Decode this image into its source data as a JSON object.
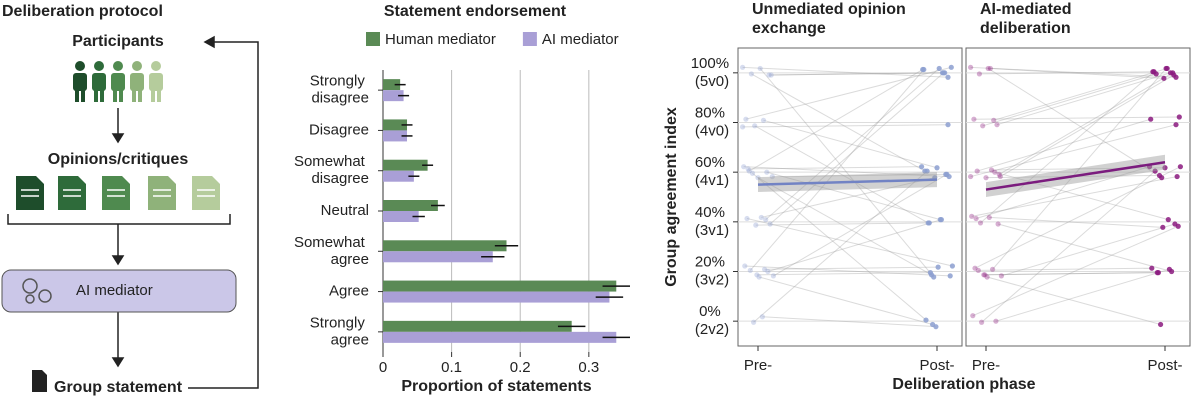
{
  "protocol": {
    "title": "Deliberation protocol",
    "participants": "Participants",
    "opinions": "Opinions/critiques",
    "mediator": "AI mediator",
    "statement": "Group statement"
  },
  "chart_data": [
    {
      "type": "bar",
      "orientation": "horizontal",
      "title": "Statement endorsement",
      "categories": [
        "Strongly disagree",
        "Disagree",
        "Somewhat disagree",
        "Neutral",
        "Somewhat agree",
        "Agree",
        "Strongly agree"
      ],
      "series": [
        {
          "name": "Human mediator",
          "color": "#5a8a55",
          "values": [
            0.025,
            0.035,
            0.065,
            0.08,
            0.18,
            0.34,
            0.275
          ],
          "errors": [
            0.008,
            0.008,
            0.008,
            0.01,
            0.017,
            0.02,
            0.02
          ]
        },
        {
          "name": "AI mediator",
          "color": "#a99fd6",
          "values": [
            0.03,
            0.035,
            0.045,
            0.052,
            0.16,
            0.33,
            0.34
          ],
          "errors": [
            0.008,
            0.008,
            0.008,
            0.009,
            0.017,
            0.02,
            0.02
          ]
        }
      ],
      "xlabel": "Proportion of statements",
      "xlim": [
        0,
        0.36
      ],
      "xticks": [
        0,
        0.1,
        0.2,
        0.3
      ],
      "grid": true,
      "legend": "top"
    },
    {
      "type": "scatter",
      "title": "Unmediated opinion exchange",
      "categories": [
        "Pre-",
        "Post-"
      ],
      "ylabel": "Group agreement index",
      "ylim": [
        -10,
        110
      ],
      "yticks": [
        {
          "value": 0,
          "label": "0% (2v2)"
        },
        {
          "value": 20,
          "label": "20% (3v2)"
        },
        {
          "value": 40,
          "label": "40% (3v1)"
        },
        {
          "value": 60,
          "label": "60% (4v1)"
        },
        {
          "value": 80,
          "label": "80% (4v0)"
        },
        {
          "value": 100,
          "label": "100% (5v0)"
        }
      ],
      "color": "#8c9fd0",
      "fit_color": "#7283c4",
      "pre": [
        100,
        100,
        100,
        100,
        80,
        80,
        80,
        60,
        60,
        60,
        60,
        60,
        60,
        40,
        40,
        40,
        40,
        20,
        20,
        20,
        20,
        20,
        20,
        0,
        0,
        100,
        60,
        20,
        40,
        80
      ],
      "post": [
        100,
        60,
        20,
        100,
        100,
        40,
        60,
        60,
        100,
        20,
        40,
        60,
        0,
        60,
        100,
        20,
        40,
        20,
        60,
        100,
        0,
        40,
        20,
        60,
        0,
        100,
        60,
        20,
        100,
        80
      ],
      "fit": {
        "pre": 55,
        "post": 57,
        "ci": 3
      }
    },
    {
      "type": "scatter",
      "title": "AI-mediated deliberation",
      "categories": [
        "Pre-",
        "Post-"
      ],
      "xlabel": "Deliberation phase",
      "ylim": [
        -10,
        110
      ],
      "color": "#8b1a7f",
      "fit_color": "#7b1c7e",
      "pre": [
        100,
        100,
        100,
        80,
        80,
        80,
        60,
        60,
        60,
        60,
        60,
        40,
        40,
        40,
        40,
        20,
        20,
        20,
        20,
        20,
        20,
        0,
        0,
        0,
        100,
        60,
        40,
        20,
        80,
        60
      ],
      "post": [
        100,
        100,
        60,
        100,
        80,
        100,
        60,
        100,
        80,
        60,
        40,
        60,
        100,
        40,
        20,
        60,
        20,
        100,
        40,
        20,
        0,
        20,
        40,
        60,
        100,
        100,
        60,
        20,
        100,
        80
      ],
      "fit": {
        "pre": 53,
        "post": 64,
        "ci": 3
      }
    }
  ]
}
